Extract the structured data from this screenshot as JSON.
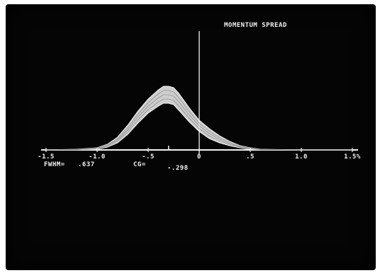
{
  "chart_data": {
    "type": "area",
    "title": "MOMENTUM SPREAD",
    "xlabel": "",
    "ylabel": "",
    "xlim": [
      -1.5,
      1.5
    ],
    "ylim": [
      0,
      1
    ],
    "tick_labels": [
      "-1.5",
      "-1.0",
      "-.5",
      "0",
      ".5",
      "1.0",
      "1.5%"
    ],
    "tick_values": [
      -1.5,
      -1.0,
      -0.5,
      0,
      0.5,
      1.0,
      1.5
    ],
    "marker_x": 0,
    "small_tick_x": -0.3,
    "series": [
      {
        "x": [
          -1.5,
          -1.2,
          -1.0,
          -0.9,
          -0.8,
          -0.7,
          -0.6,
          -0.5,
          -0.4,
          -0.35,
          -0.3,
          -0.25,
          -0.2,
          -0.1,
          0.0,
          0.1,
          0.2,
          0.3,
          0.4,
          0.5,
          0.6,
          1.0,
          1.5
        ],
        "upper": [
          0.0,
          0.01,
          0.03,
          0.08,
          0.18,
          0.35,
          0.55,
          0.72,
          0.85,
          0.9,
          0.9,
          0.88,
          0.8,
          0.6,
          0.42,
          0.3,
          0.2,
          0.12,
          0.06,
          0.03,
          0.01,
          0.0,
          0.0
        ],
        "lower": [
          0.0,
          0.0,
          0.01,
          0.04,
          0.1,
          0.22,
          0.38,
          0.52,
          0.62,
          0.66,
          0.66,
          0.64,
          0.56,
          0.4,
          0.26,
          0.16,
          0.1,
          0.06,
          0.03,
          0.01,
          0.0,
          0.0,
          0.0
        ]
      }
    ],
    "stats": {
      "fwhm_label": "FWHM=",
      "fwhm_value": ".637",
      "cg_label": "CG=",
      "cg_value": "-.298"
    },
    "grid": false,
    "legend": "none"
  },
  "colors": {
    "screen": "#050505",
    "trace": "#f2f2f2"
  }
}
